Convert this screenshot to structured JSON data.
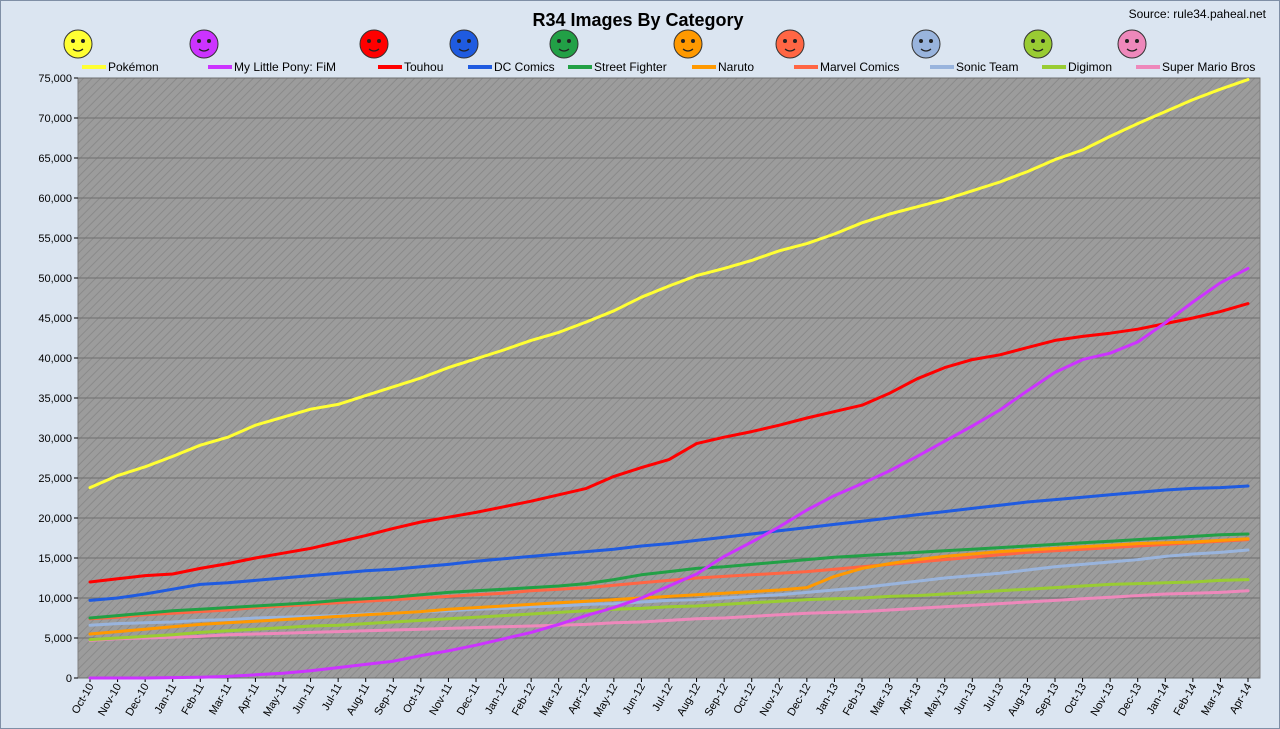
{
  "chart_data": {
    "type": "line",
    "title": "R34 Images By Category",
    "source": "Source: rule34.paheal.net",
    "xlabel": "",
    "ylabel": "",
    "ylim": [
      0,
      75000
    ],
    "yticks": [
      "0",
      "5,000",
      "10,000",
      "15,000",
      "20,000",
      "25,000",
      "30,000",
      "35,000",
      "40,000",
      "45,000",
      "50,000",
      "55,000",
      "60,000",
      "65,000",
      "70,000",
      "75,000"
    ],
    "grid": true,
    "legend": "top",
    "categories": [
      "Oct-10",
      "Nov-10",
      "Dec-10",
      "Jan-11",
      "Feb-11",
      "Mar-11",
      "Apr-11",
      "May-11",
      "Jun-11",
      "Jul-11",
      "Aug-11",
      "Sep-11",
      "Oct-11",
      "Nov-11",
      "Dec-11",
      "Jan-12",
      "Feb-12",
      "Mar-12",
      "Apr-12",
      "May-12",
      "Jun-12",
      "Jul-12",
      "Aug-12",
      "Sep-12",
      "Oct-12",
      "Nov-12",
      "Dec-12",
      "Jan-13",
      "Feb-13",
      "Mar-13",
      "Apr-13",
      "May-13",
      "Jun-13",
      "Jul-13",
      "Aug-13",
      "Sep-13",
      "Oct-13",
      "Nov-13",
      "Dec-13",
      "Jan-14",
      "Feb-14",
      "Mar-14",
      "Apr-14"
    ],
    "series": [
      {
        "name": "Pokémon",
        "color": "#ffff33",
        "icon": "pikachu-icon",
        "values": [
          23800,
          25300,
          26400,
          27700,
          29100,
          30100,
          31600,
          32600,
          33600,
          34200,
          35300,
          36400,
          37500,
          38800,
          39900,
          41000,
          42200,
          43200,
          44500,
          45900,
          47600,
          49000,
          50300,
          51200,
          52200,
          53400,
          54300,
          55500,
          56900,
          58000,
          58900,
          59800,
          60900,
          62000,
          63300,
          64800,
          66000,
          67700,
          69300,
          70800,
          72300,
          73600,
          74800
        ]
      },
      {
        "name": "My Little Pony: FiM",
        "color": "#cc33ff",
        "icon": "pony-icon",
        "values": [
          0,
          0,
          0,
          50,
          100,
          200,
          400,
          600,
          900,
          1300,
          1700,
          2100,
          2800,
          3400,
          4100,
          4900,
          5700,
          6700,
          7800,
          8800,
          10000,
          11500,
          13000,
          15200,
          17000,
          18900,
          21000,
          22800,
          24300,
          25900,
          27700,
          29600,
          31500,
          33500,
          35900,
          38200,
          39800,
          40600,
          42000,
          44400,
          47000,
          49400,
          51200
        ]
      },
      {
        "name": "Touhou",
        "color": "#ff0000",
        "icon": "touhou-icon",
        "values": [
          12000,
          12400,
          12800,
          13000,
          13700,
          14300,
          15000,
          15600,
          16200,
          17000,
          17800,
          18700,
          19500,
          20100,
          20700,
          21400,
          22100,
          22900,
          23700,
          25200,
          26300,
          27300,
          29300,
          30100,
          30800,
          31600,
          32500,
          33300,
          34100,
          35600,
          37400,
          38800,
          39800,
          40400,
          41300,
          42200,
          42700,
          43100,
          43600,
          44300,
          45000,
          45800,
          46800
        ]
      },
      {
        "name": "DC Comics",
        "color": "#1f5be0",
        "icon": "batman-icon",
        "values": [
          9700,
          10000,
          10500,
          11100,
          11700,
          11900,
          12200,
          12500,
          12800,
          13100,
          13400,
          13600,
          13900,
          14200,
          14600,
          14900,
          15200,
          15500,
          15800,
          16100,
          16500,
          16800,
          17200,
          17600,
          18000,
          18400,
          18800,
          19200,
          19600,
          20000,
          20400,
          20800,
          21200,
          21600,
          22000,
          22300,
          22600,
          22900,
          23200,
          23500,
          23700,
          23800,
          24000
        ]
      },
      {
        "name": "Street Fighter",
        "color": "#22a046",
        "icon": "chunli-icon",
        "values": [
          7500,
          7800,
          8100,
          8400,
          8600,
          8800,
          9000,
          9200,
          9400,
          9700,
          9900,
          10100,
          10400,
          10700,
          10900,
          11100,
          11300,
          11500,
          11800,
          12300,
          12900,
          13300,
          13700,
          13900,
          14200,
          14500,
          14800,
          15100,
          15300,
          15500,
          15700,
          15900,
          16100,
          16300,
          16500,
          16700,
          16900,
          17100,
          17300,
          17500,
          17700,
          17900,
          18000
        ]
      },
      {
        "name": "Naruto",
        "color": "#ff9900",
        "icon": "naruto-icon",
        "values": [
          5500,
          5800,
          6100,
          6400,
          6700,
          6900,
          7100,
          7300,
          7500,
          7700,
          7900,
          8100,
          8300,
          8600,
          8800,
          9000,
          9200,
          9400,
          9600,
          9800,
          10000,
          10200,
          10400,
          10600,
          10800,
          11000,
          11300,
          12700,
          13700,
          14300,
          14800,
          15200,
          15500,
          15800,
          16000,
          16200,
          16400,
          16600,
          16800,
          16900,
          17000,
          17200,
          17400
        ]
      },
      {
        "name": "Marvel Comics",
        "color": "#ff6644",
        "icon": "wolverine-icon",
        "values": [
          7400,
          7600,
          7900,
          8100,
          8300,
          8500,
          8800,
          9000,
          9200,
          9400,
          9600,
          9800,
          10000,
          10200,
          10400,
          10600,
          10900,
          11100,
          11300,
          11600,
          11900,
          12200,
          12500,
          12700,
          12900,
          13100,
          13300,
          13600,
          13900,
          14200,
          14500,
          14800,
          15100,
          15400,
          15700,
          15900,
          16100,
          16300,
          16500,
          16700,
          16900,
          17100,
          17300
        ]
      },
      {
        "name": "Sonic Team",
        "color": "#99b4dd",
        "icon": "sonic-icon",
        "values": [
          6600,
          6800,
          6900,
          7000,
          7200,
          7300,
          7500,
          7600,
          7700,
          7800,
          8000,
          8100,
          8300,
          8400,
          8600,
          8700,
          8900,
          9000,
          9200,
          9300,
          9500,
          9700,
          9800,
          10000,
          10200,
          10400,
          10700,
          11000,
          11300,
          11700,
          12100,
          12500,
          12800,
          13100,
          13500,
          13900,
          14200,
          14500,
          14800,
          15200,
          15500,
          15700,
          16000
        ]
      },
      {
        "name": "Digimon",
        "color": "#99cc33",
        "icon": "renamon-icon",
        "values": [
          4800,
          5000,
          5200,
          5400,
          5700,
          5900,
          6100,
          6300,
          6500,
          6600,
          6800,
          7000,
          7200,
          7400,
          7600,
          7800,
          8000,
          8200,
          8400,
          8600,
          8700,
          8900,
          9000,
          9200,
          9400,
          9600,
          9800,
          9900,
          10000,
          10200,
          10300,
          10500,
          10700,
          10900,
          11100,
          11300,
          11500,
          11700,
          11800,
          11900,
          12000,
          12200,
          12300
        ]
      },
      {
        "name": "Super Mario Bros",
        "color": "#ee88bb",
        "icon": "peach-icon",
        "values": [
          4700,
          4900,
          5000,
          5100,
          5200,
          5400,
          5500,
          5600,
          5700,
          5800,
          5900,
          6000,
          6100,
          6200,
          6300,
          6400,
          6500,
          6600,
          6700,
          6900,
          7000,
          7200,
          7400,
          7500,
          7700,
          7900,
          8100,
          8200,
          8300,
          8500,
          8700,
          8900,
          9100,
          9300,
          9500,
          9700,
          9900,
          10100,
          10300,
          10500,
          10600,
          10700,
          10900
        ]
      }
    ]
  }
}
